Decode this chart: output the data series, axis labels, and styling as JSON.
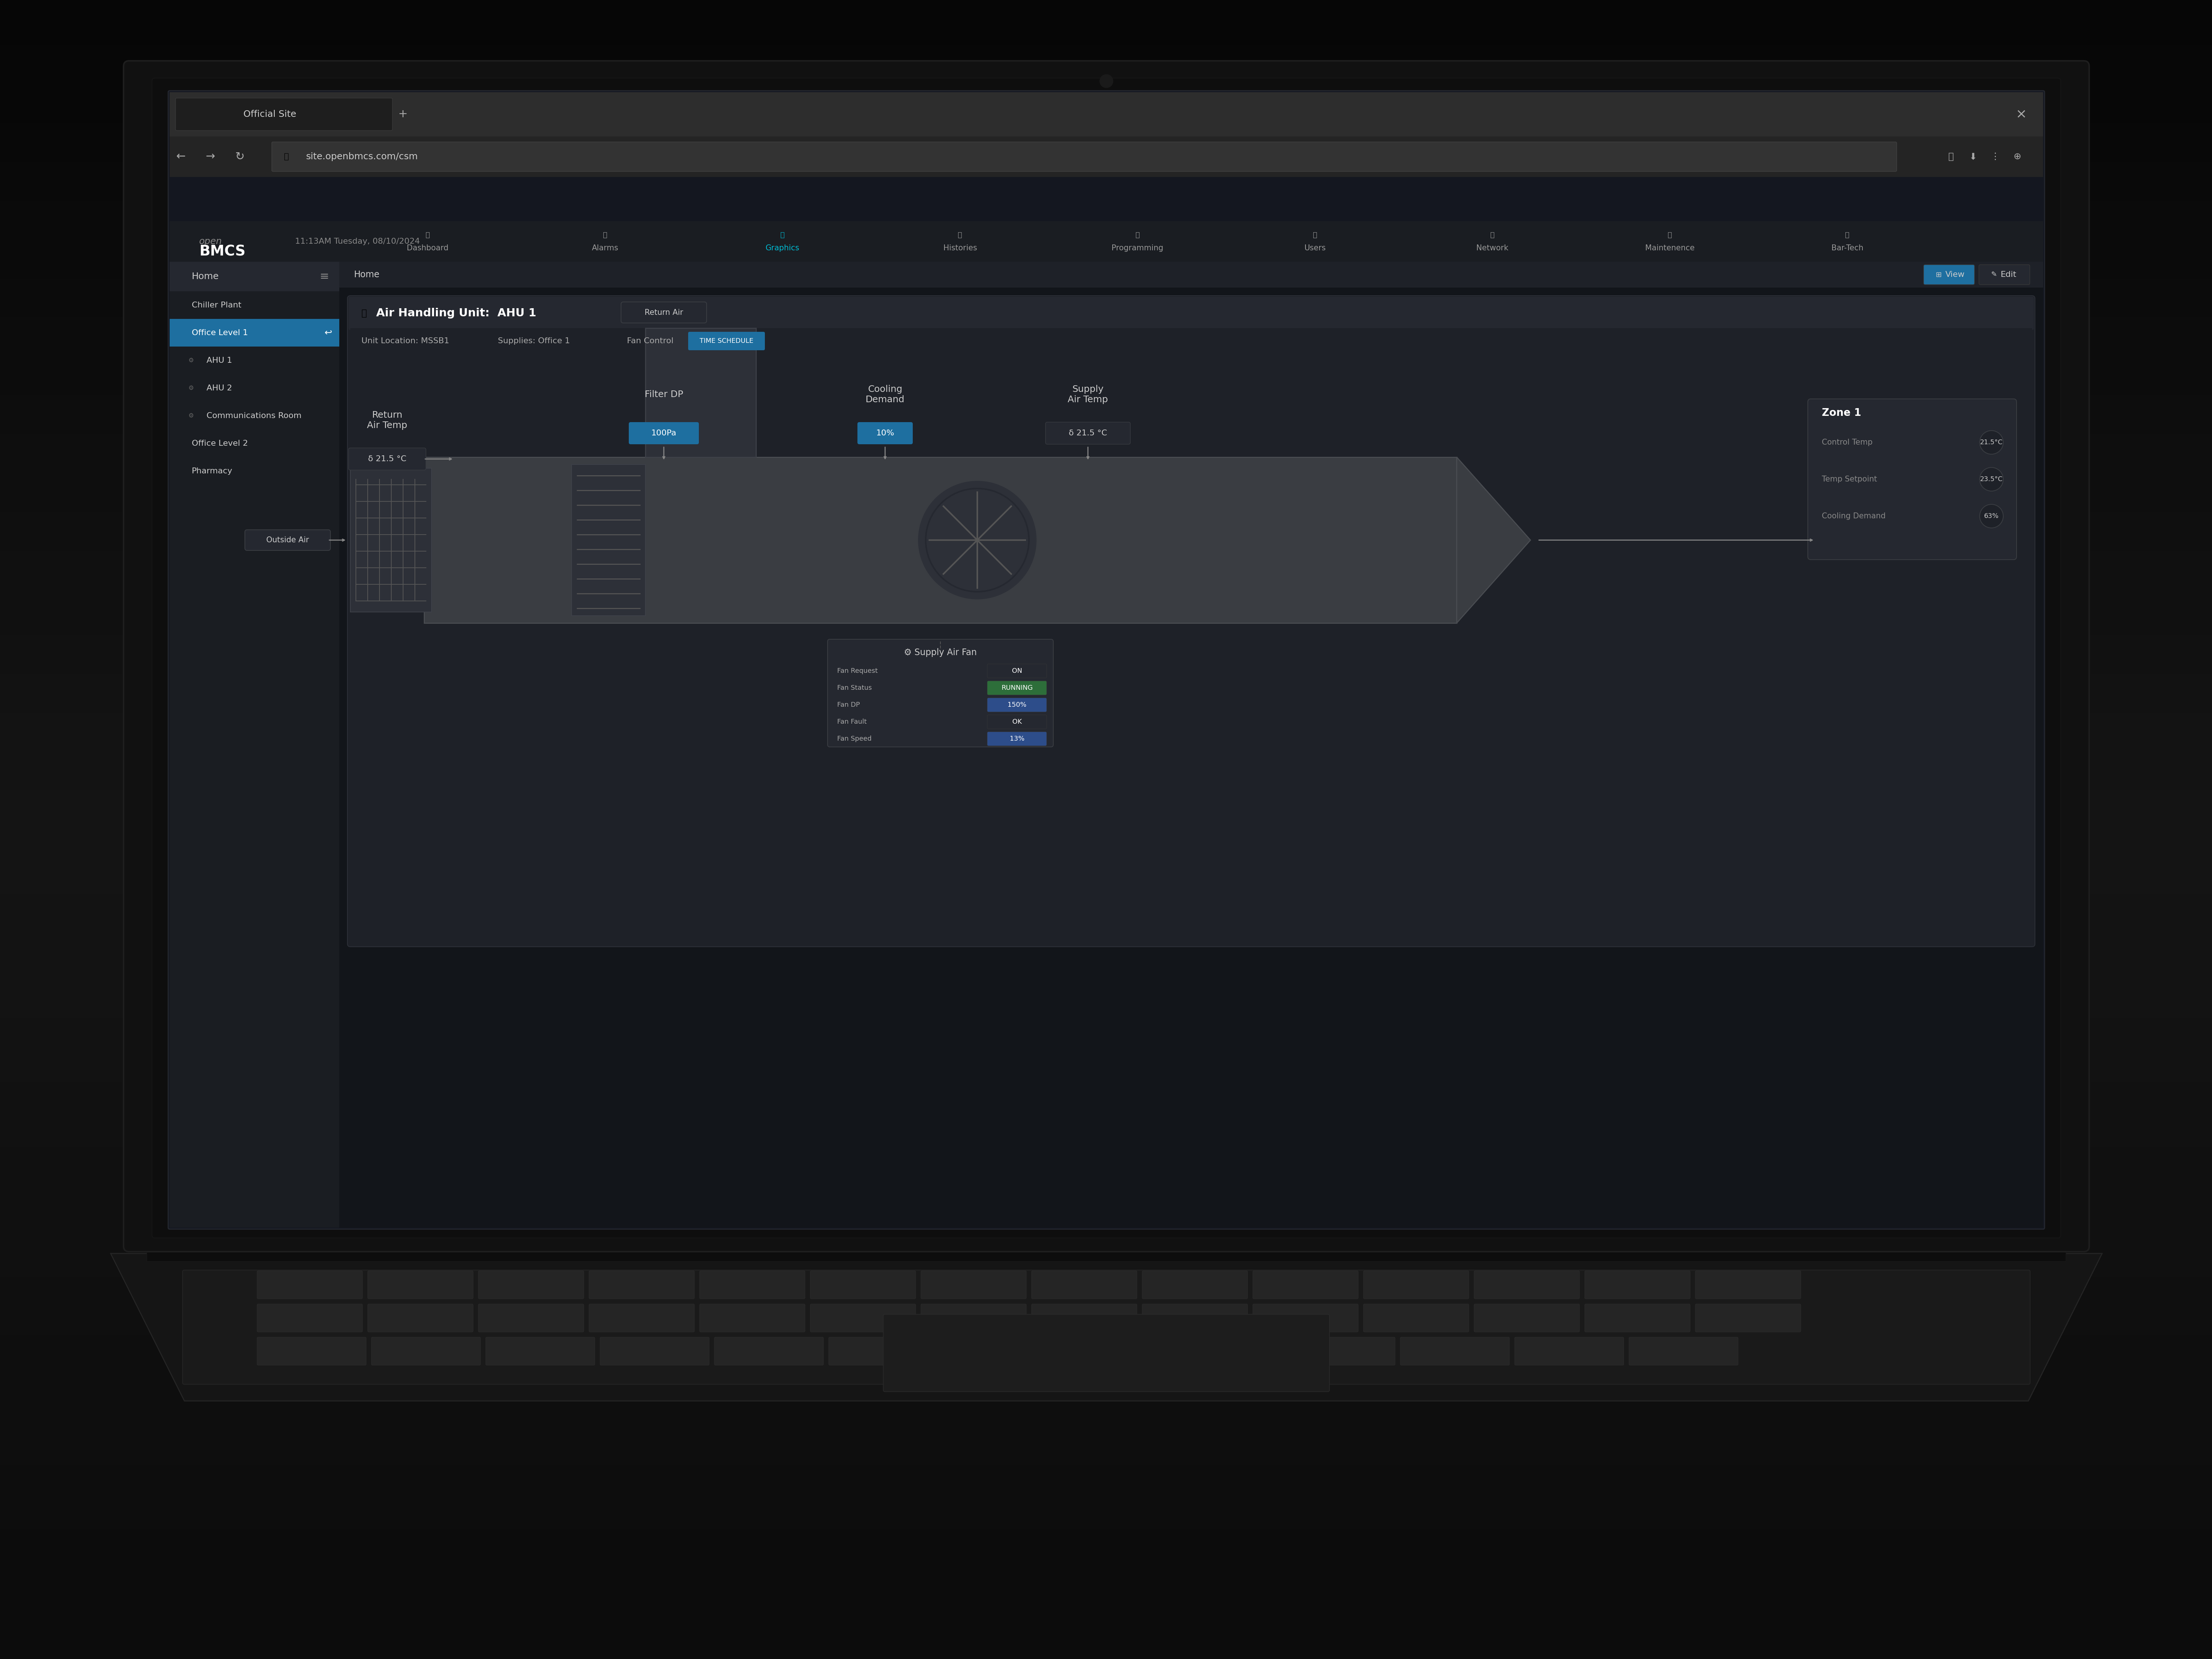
{
  "bg_color": "#0a0a0a",
  "laptop_body_color": "#1a1a1a",
  "laptop_screen_color": "#111111",
  "browser_bg": "#1e1e1e",
  "browser_tab_bg": "#2a2a2a",
  "sidebar_bg": "#1a1d22",
  "main_bg": "#12151a",
  "panel_bg": "#1e2128",
  "card_bg": "#252830",
  "nav_bg": "#1a1d22",
  "highlight_blue": "#00aaff",
  "cyan_color": "#00bcd4",
  "green_color": "#4caf50",
  "orange_color": "#ff9800",
  "text_white": "#ffffff",
  "text_gray": "#aaaaaa",
  "text_light": "#cccccc",
  "title_text": "Air Handling Unit:  AHU 1",
  "unit_location": "Unit Location: MSSB1",
  "supplies": "Supplies: Office 1",
  "fan_control": "Fan Control",
  "time_schedule": "TIME SCHEDULE",
  "nav_items": [
    "Dashboard",
    "Alarms",
    "Graphics",
    "Histories",
    "Programming",
    "Users",
    "Network",
    "Maintenence",
    "Bar-Tech"
  ],
  "nav_active": "Graphics",
  "sidebar_items": [
    "Home",
    "Chiller Plant",
    "Office Level 1",
    "AHU 1",
    "AHU 2",
    "Communications Room",
    "Office Level 2",
    "Pharmacy"
  ],
  "sidebar_active": "Office Level 1",
  "datetime": "11:13AM Tuesday, 08/10/2024",
  "url": "site.openbmcs.com/csm",
  "tab_title": "Official Site",
  "home_breadcrumb": "Home",
  "return_air_temp_label": "Return\nAir Temp",
  "return_air_value": "δ 21.5 °C",
  "filter_dp_label": "Filter DP",
  "filter_dp_value": "100Pa",
  "cooling_demand_label": "Cooling\nDemand",
  "cooling_demand_value": "10%",
  "supply_air_temp_label": "Supply\nAir Temp",
  "supply_air_value": "δ 21.5 °C",
  "return_air_bubble": "Return Air",
  "outside_air_bubble": "Outside Air",
  "zone_title": "Zone 1",
  "control_temp_label": "Control Temp",
  "control_temp_value": "21.5°C",
  "temp_setpoint_label": "Temp Setpoint",
  "temp_setpoint_value": "23.5°C",
  "cooling_demand_zone_label": "Cooling Demand",
  "cooling_demand_zone_value": "63%",
  "fan_panel_title": "Supply Air Fan",
  "fan_request_label": "Fan Request",
  "fan_request_value": "ON",
  "fan_status_label": "Fan Status",
  "fan_status_value": "RUNNING",
  "fan_dp_label": "Fan DP",
  "fan_dp_value": "150%",
  "fan_fault_label": "Fan Fault",
  "fan_fault_value": "OK",
  "fan_speed_label": "Fan Speed",
  "fan_speed_value": "13%",
  "view_btn": "View",
  "edit_btn": "Edit"
}
